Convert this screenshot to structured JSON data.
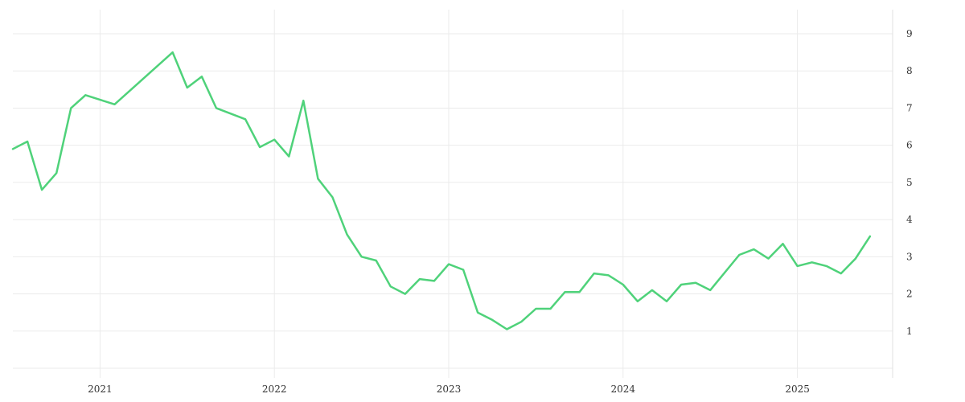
{
  "chart_data": {
    "type": "line",
    "title": "",
    "xlabel": "",
    "ylabel": "",
    "x_axis": {
      "type": "time",
      "range": [
        "2020-07-01",
        "2025-07-01"
      ],
      "ticks": [
        "2021",
        "2022",
        "2023",
        "2024",
        "2025"
      ]
    },
    "y_axis": {
      "range": [
        0,
        9.5
      ],
      "ticks": [
        1,
        2,
        3,
        4,
        5,
        6,
        7,
        8,
        9
      ],
      "position": "right"
    },
    "grid": true,
    "legend": "none",
    "series": [
      {
        "color": "#4fd27a",
        "points": [
          [
            "2020-07",
            5.9
          ],
          [
            "2020-08",
            6.1
          ],
          [
            "2020-09",
            4.8
          ],
          [
            "2020-10",
            5.25
          ],
          [
            "2020-11",
            7.0
          ],
          [
            "2020-12",
            7.35
          ],
          [
            "2021-02",
            7.1
          ],
          [
            "2021-06",
            8.5
          ],
          [
            "2021-07",
            7.55
          ],
          [
            "2021-08",
            7.85
          ],
          [
            "2021-09",
            7.0
          ],
          [
            "2021-11",
            6.7
          ],
          [
            "2021-12",
            5.95
          ],
          [
            "2022-01",
            6.15
          ],
          [
            "2022-02",
            5.7
          ],
          [
            "2022-03",
            7.2
          ],
          [
            "2022-04",
            5.1
          ],
          [
            "2022-05",
            4.6
          ],
          [
            "2022-06",
            3.6
          ],
          [
            "2022-07",
            3.0
          ],
          [
            "2022-08",
            2.9
          ],
          [
            "2022-09",
            2.2
          ],
          [
            "2022-10",
            2.0
          ],
          [
            "2022-11",
            2.4
          ],
          [
            "2022-12",
            2.35
          ],
          [
            "2023-01",
            2.8
          ],
          [
            "2023-02",
            2.65
          ],
          [
            "2023-03",
            1.5
          ],
          [
            "2023-04",
            1.3
          ],
          [
            "2023-05",
            1.05
          ],
          [
            "2023-06",
            1.25
          ],
          [
            "2023-07",
            1.6
          ],
          [
            "2023-08",
            1.6
          ],
          [
            "2023-09",
            2.05
          ],
          [
            "2023-10",
            2.05
          ],
          [
            "2023-11",
            2.55
          ],
          [
            "2023-12",
            2.5
          ],
          [
            "2024-01",
            2.25
          ],
          [
            "2024-02",
            1.8
          ],
          [
            "2024-03",
            2.1
          ],
          [
            "2024-04",
            1.8
          ],
          [
            "2024-05",
            2.25
          ],
          [
            "2024-06",
            2.3
          ],
          [
            "2024-07",
            2.1
          ],
          [
            "2024-09",
            3.05
          ],
          [
            "2024-10",
            3.2
          ],
          [
            "2024-11",
            2.95
          ],
          [
            "2024-12",
            3.35
          ],
          [
            "2025-01",
            2.75
          ],
          [
            "2025-02",
            2.85
          ],
          [
            "2025-03",
            2.75
          ],
          [
            "2025-04",
            2.55
          ],
          [
            "2025-05",
            2.95
          ],
          [
            "2025-06",
            3.55
          ]
        ]
      }
    ]
  }
}
